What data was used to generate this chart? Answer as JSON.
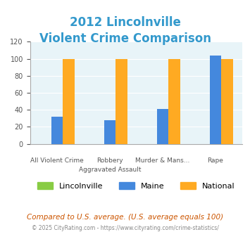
{
  "title_line1": "2012 Lincolnville",
  "title_line2": "Violent Crime Comparison",
  "title_color": "#3399cc",
  "cat_top": [
    "",
    "Robbery",
    "Murder & Mans...",
    ""
  ],
  "cat_bot": [
    "All Violent Crime",
    "Aggravated Assault",
    "",
    "Rape"
  ],
  "series": {
    "Lincolnville": [
      0,
      0,
      0,
      0
    ],
    "Maine": [
      32,
      28,
      41,
      104
    ],
    "National": [
      100,
      100,
      100,
      100
    ]
  },
  "colors": {
    "Lincolnville": "#88cc44",
    "Maine": "#4488dd",
    "National": "#ffaa22"
  },
  "ylim": [
    0,
    120
  ],
  "yticks": [
    0,
    20,
    40,
    60,
    80,
    100,
    120
  ],
  "background_color": "#e8f4f8",
  "grid_color": "#ffffff",
  "footnote": "Compared to U.S. average. (U.S. average equals 100)",
  "footnote2": "© 2025 CityRating.com - https://www.cityrating.com/crime-statistics/",
  "footnote_color": "#cc5500",
  "footnote2_color": "#888888"
}
